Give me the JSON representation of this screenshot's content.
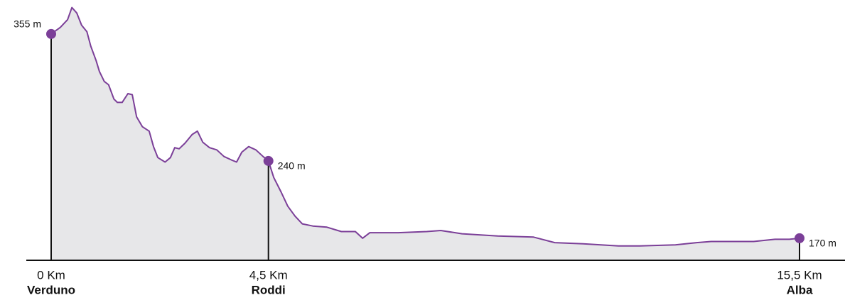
{
  "chart_data": {
    "type": "area",
    "x": [
      0,
      0.19,
      0.34,
      0.43,
      0.53,
      0.63,
      0.74,
      0.82,
      0.93,
      1.0,
      1.1,
      1.19,
      1.3,
      1.37,
      1.47,
      1.59,
      1.68,
      1.77,
      1.89,
      2.03,
      2.12,
      2.21,
      2.36,
      2.47,
      2.56,
      2.65,
      2.77,
      2.92,
      3.03,
      3.14,
      3.28,
      3.43,
      3.58,
      3.73,
      3.84,
      3.95,
      4.09,
      4.24,
      4.39,
      4.5,
      4.61,
      4.76,
      4.9,
      5.05,
      5.2,
      5.42,
      5.71,
      6.01,
      6.3,
      6.45,
      6.6,
      7.19,
      7.78,
      8.07,
      8.51,
      9.25,
      9.99,
      10.43,
      11.02,
      11.75,
      12.19,
      12.93,
      13.37,
      13.67,
      14.11,
      14.55,
      14.99,
      15.29,
      15.5
    ],
    "values": [
      355,
      361,
      368,
      379,
      374,
      363,
      357,
      344,
      331,
      321,
      312,
      309,
      296,
      293,
      293,
      301,
      300,
      280,
      271,
      267,
      253,
      243,
      239,
      243,
      252,
      251,
      256,
      264,
      267,
      257,
      252,
      250,
      244,
      241,
      239,
      248,
      253,
      250,
      244,
      240,
      225,
      212,
      199,
      190,
      183,
      181,
      180,
      176,
      176,
      170,
      175,
      175,
      176,
      177,
      174,
      172,
      171,
      166,
      165,
      163,
      163,
      164,
      166,
      167,
      167,
      167,
      169,
      169,
      170
    ],
    "color": "#7b3f98",
    "fill": "#e7e7e9",
    "xlim": [
      0,
      15.5
    ],
    "ylim": [
      150,
      380
    ],
    "xticks": [
      {
        "value": 0,
        "label": "0 Km"
      },
      {
        "value": 4.5,
        "label": "4,5 Km"
      },
      {
        "value": 15.5,
        "label": "15,5 Km"
      }
    ],
    "stops": {
      "names": [
        "Verduno",
        "Roddi",
        "Alba"
      ],
      "values": [
        355,
        240,
        170
      ],
      "value_labels": [
        "355 m",
        "240 m",
        "170 m"
      ]
    }
  }
}
